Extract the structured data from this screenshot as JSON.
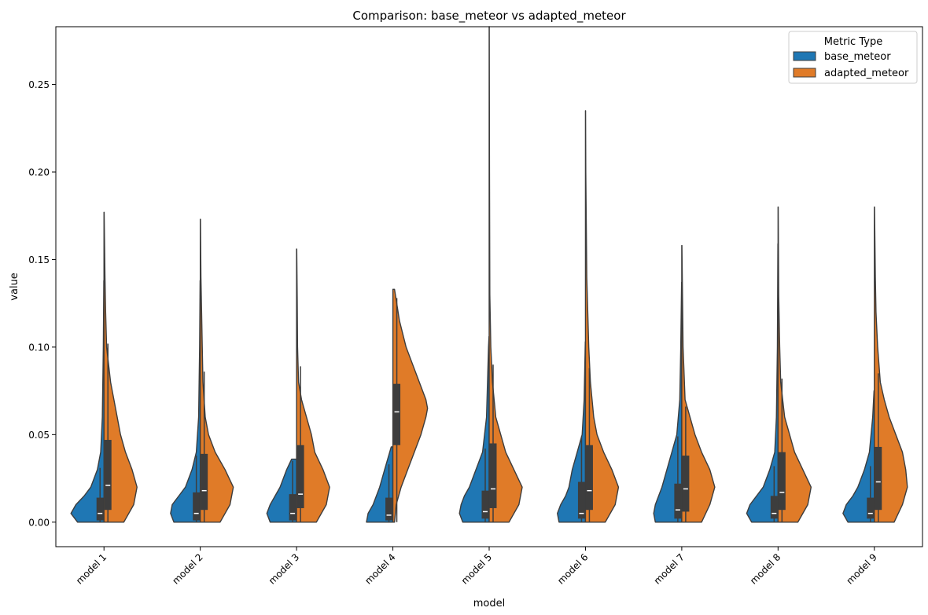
{
  "chart_data": {
    "type": "violin",
    "title": "Comparison: base_meteor vs adapted_meteor",
    "xlabel": "model",
    "ylabel": "value",
    "ylim": [
      -0.014,
      0.283
    ],
    "yticks": [
      0.0,
      0.05,
      0.1,
      0.15,
      0.2,
      0.25
    ],
    "ytick_labels": [
      "0.00",
      "0.05",
      "0.10",
      "0.15",
      "0.20",
      "0.25"
    ],
    "categories": [
      "model 1",
      "model 2",
      "model 3",
      "model 4",
      "model 5",
      "model 6",
      "model 7",
      "model 8",
      "model 9"
    ],
    "legend": {
      "title": "Metric Type",
      "placement": "top-right"
    },
    "grid": false,
    "series": [
      {
        "name": "base_meteor",
        "color": "#1f77b4",
        "side": "left",
        "max": [
          0.138,
          0.138,
          0.036,
          0.043,
          0.106,
          0.103,
          0.137,
          0.159,
          0.075
        ],
        "q1": [
          0.001,
          0.001,
          0.001,
          0.001,
          0.002,
          0.002,
          0.002,
          0.002,
          0.002
        ],
        "median": [
          0.005,
          0.005,
          0.005,
          0.004,
          0.006,
          0.005,
          0.007,
          0.005,
          0.005
        ],
        "q3": [
          0.014,
          0.017,
          0.016,
          0.014,
          0.018,
          0.023,
          0.022,
          0.015,
          0.014
        ],
        "whisker_high": [
          0.031,
          0.038,
          0.035,
          0.033,
          0.042,
          0.049,
          0.049,
          0.032,
          0.032
        ],
        "density": [
          [
            [
              0.0,
              0.8
            ],
            [
              0.005,
              1.0
            ],
            [
              0.01,
              0.85
            ],
            [
              0.015,
              0.6
            ],
            [
              0.02,
              0.4
            ],
            [
              0.03,
              0.2
            ],
            [
              0.04,
              0.1
            ],
            [
              0.06,
              0.05
            ],
            [
              0.1,
              0.02
            ],
            [
              0.138,
              0.005
            ]
          ],
          [
            [
              0.0,
              0.8
            ],
            [
              0.005,
              0.9
            ],
            [
              0.01,
              0.85
            ],
            [
              0.015,
              0.65
            ],
            [
              0.02,
              0.45
            ],
            [
              0.03,
              0.25
            ],
            [
              0.04,
              0.12
            ],
            [
              0.06,
              0.05
            ],
            [
              0.1,
              0.02
            ],
            [
              0.138,
              0.005
            ]
          ],
          [
            [
              0.0,
              0.8
            ],
            [
              0.005,
              0.9
            ],
            [
              0.01,
              0.8
            ],
            [
              0.015,
              0.65
            ],
            [
              0.02,
              0.5
            ],
            [
              0.03,
              0.3
            ],
            [
              0.036,
              0.15
            ]
          ],
          [
            [
              0.0,
              0.8
            ],
            [
              0.005,
              0.75
            ],
            [
              0.01,
              0.6
            ],
            [
              0.015,
              0.5
            ],
            [
              0.02,
              0.4
            ],
            [
              0.03,
              0.25
            ],
            [
              0.043,
              0.05
            ]
          ],
          [
            [
              0.0,
              0.8
            ],
            [
              0.005,
              0.9
            ],
            [
              0.01,
              0.85
            ],
            [
              0.015,
              0.75
            ],
            [
              0.02,
              0.6
            ],
            [
              0.03,
              0.4
            ],
            [
              0.04,
              0.2
            ],
            [
              0.06,
              0.08
            ],
            [
              0.1,
              0.02
            ],
            [
              0.106,
              0.005
            ]
          ],
          [
            [
              0.0,
              0.8
            ],
            [
              0.005,
              0.85
            ],
            [
              0.01,
              0.75
            ],
            [
              0.015,
              0.6
            ],
            [
              0.02,
              0.5
            ],
            [
              0.03,
              0.4
            ],
            [
              0.04,
              0.25
            ],
            [
              0.05,
              0.1
            ],
            [
              0.07,
              0.04
            ],
            [
              0.103,
              0.005
            ]
          ],
          [
            [
              0.0,
              0.8
            ],
            [
              0.005,
              0.85
            ],
            [
              0.01,
              0.8
            ],
            [
              0.015,
              0.7
            ],
            [
              0.02,
              0.6
            ],
            [
              0.03,
              0.45
            ],
            [
              0.04,
              0.3
            ],
            [
              0.05,
              0.15
            ],
            [
              0.07,
              0.06
            ],
            [
              0.1,
              0.03
            ],
            [
              0.137,
              0.005
            ]
          ],
          [
            [
              0.0,
              0.8
            ],
            [
              0.005,
              0.95
            ],
            [
              0.01,
              0.85
            ],
            [
              0.015,
              0.65
            ],
            [
              0.02,
              0.45
            ],
            [
              0.03,
              0.25
            ],
            [
              0.04,
              0.1
            ],
            [
              0.06,
              0.05
            ],
            [
              0.1,
              0.02
            ],
            [
              0.159,
              0.005
            ]
          ],
          [
            [
              0.0,
              0.8
            ],
            [
              0.005,
              0.95
            ],
            [
              0.01,
              0.85
            ],
            [
              0.015,
              0.65
            ],
            [
              0.02,
              0.5
            ],
            [
              0.03,
              0.3
            ],
            [
              0.04,
              0.15
            ],
            [
              0.06,
              0.05
            ],
            [
              0.075,
              0.01
            ]
          ]
        ]
      },
      {
        "name": "adapted_meteor",
        "color": "#e07b28",
        "side": "right",
        "max": [
          0.177,
          0.173,
          0.156,
          0.133,
          0.283,
          0.235,
          0.158,
          0.18,
          0.18
        ],
        "q1": [
          0.007,
          0.007,
          0.008,
          0.044,
          0.008,
          0.007,
          0.006,
          0.007,
          0.007
        ],
        "median": [
          0.021,
          0.018,
          0.016,
          0.063,
          0.019,
          0.018,
          0.019,
          0.017,
          0.023
        ],
        "q3": [
          0.047,
          0.039,
          0.044,
          0.079,
          0.045,
          0.044,
          0.038,
          0.04,
          0.043
        ],
        "whisker_high": [
          0.102,
          0.086,
          0.089,
          0.128,
          0.09,
          0.088,
          0.066,
          0.082,
          0.085
        ],
        "density": [
          [
            [
              0.0,
              0.6
            ],
            [
              0.01,
              0.9
            ],
            [
              0.02,
              1.0
            ],
            [
              0.03,
              0.85
            ],
            [
              0.04,
              0.65
            ],
            [
              0.05,
              0.5
            ],
            [
              0.06,
              0.4
            ],
            [
              0.07,
              0.3
            ],
            [
              0.08,
              0.2
            ],
            [
              0.1,
              0.08
            ],
            [
              0.12,
              0.05
            ],
            [
              0.14,
              0.03
            ],
            [
              0.177,
              0.005
            ]
          ],
          [
            [
              0.0,
              0.6
            ],
            [
              0.01,
              0.9
            ],
            [
              0.02,
              1.0
            ],
            [
              0.03,
              0.75
            ],
            [
              0.04,
              0.45
            ],
            [
              0.05,
              0.25
            ],
            [
              0.06,
              0.15
            ],
            [
              0.08,
              0.08
            ],
            [
              0.1,
              0.06
            ],
            [
              0.12,
              0.04
            ],
            [
              0.14,
              0.02
            ],
            [
              0.173,
              0.005
            ]
          ],
          [
            [
              0.0,
              0.6
            ],
            [
              0.01,
              0.9
            ],
            [
              0.02,
              1.0
            ],
            [
              0.03,
              0.8
            ],
            [
              0.04,
              0.55
            ],
            [
              0.05,
              0.45
            ],
            [
              0.06,
              0.3
            ],
            [
              0.07,
              0.15
            ],
            [
              0.08,
              0.06
            ],
            [
              0.1,
              0.03
            ],
            [
              0.127,
              0.02
            ],
            [
              0.156,
              0.005
            ]
          ],
          [
            [
              0.0,
              0.05
            ],
            [
              0.01,
              0.1
            ],
            [
              0.02,
              0.25
            ],
            [
              0.03,
              0.45
            ],
            [
              0.04,
              0.65
            ],
            [
              0.05,
              0.85
            ],
            [
              0.06,
              1.0
            ],
            [
              0.065,
              1.05
            ],
            [
              0.07,
              1.0
            ],
            [
              0.08,
              0.8
            ],
            [
              0.09,
              0.6
            ],
            [
              0.1,
              0.4
            ],
            [
              0.115,
              0.2
            ],
            [
              0.133,
              0.05
            ]
          ],
          [
            [
              0.0,
              0.6
            ],
            [
              0.01,
              0.9
            ],
            [
              0.02,
              1.0
            ],
            [
              0.03,
              0.75
            ],
            [
              0.04,
              0.5
            ],
            [
              0.05,
              0.35
            ],
            [
              0.06,
              0.2
            ],
            [
              0.08,
              0.1
            ],
            [
              0.1,
              0.05
            ],
            [
              0.13,
              0.02
            ],
            [
              0.2,
              0.01
            ],
            [
              0.283,
              0.003
            ]
          ],
          [
            [
              0.0,
              0.6
            ],
            [
              0.01,
              0.9
            ],
            [
              0.02,
              1.0
            ],
            [
              0.03,
              0.8
            ],
            [
              0.04,
              0.55
            ],
            [
              0.05,
              0.35
            ],
            [
              0.06,
              0.25
            ],
            [
              0.08,
              0.15
            ],
            [
              0.1,
              0.1
            ],
            [
              0.14,
              0.04
            ],
            [
              0.2,
              0.01
            ],
            [
              0.235,
              0.003
            ]
          ],
          [
            [
              0.0,
              0.6
            ],
            [
              0.01,
              0.85
            ],
            [
              0.02,
              1.0
            ],
            [
              0.03,
              0.85
            ],
            [
              0.04,
              0.6
            ],
            [
              0.05,
              0.4
            ],
            [
              0.06,
              0.25
            ],
            [
              0.07,
              0.1
            ],
            [
              0.1,
              0.04
            ],
            [
              0.158,
              0.005
            ]
          ],
          [
            [
              0.0,
              0.6
            ],
            [
              0.01,
              0.9
            ],
            [
              0.02,
              1.0
            ],
            [
              0.03,
              0.75
            ],
            [
              0.04,
              0.5
            ],
            [
              0.05,
              0.35
            ],
            [
              0.06,
              0.2
            ],
            [
              0.08,
              0.08
            ],
            [
              0.1,
              0.05
            ],
            [
              0.13,
              0.02
            ],
            [
              0.18,
              0.005
            ]
          ],
          [
            [
              0.0,
              0.6
            ],
            [
              0.01,
              0.85
            ],
            [
              0.02,
              1.0
            ],
            [
              0.03,
              0.95
            ],
            [
              0.04,
              0.85
            ],
            [
              0.05,
              0.65
            ],
            [
              0.06,
              0.45
            ],
            [
              0.07,
              0.3
            ],
            [
              0.08,
              0.18
            ],
            [
              0.1,
              0.1
            ],
            [
              0.12,
              0.05
            ],
            [
              0.14,
              0.03
            ],
            [
              0.18,
              0.005
            ]
          ]
        ]
      }
    ]
  }
}
